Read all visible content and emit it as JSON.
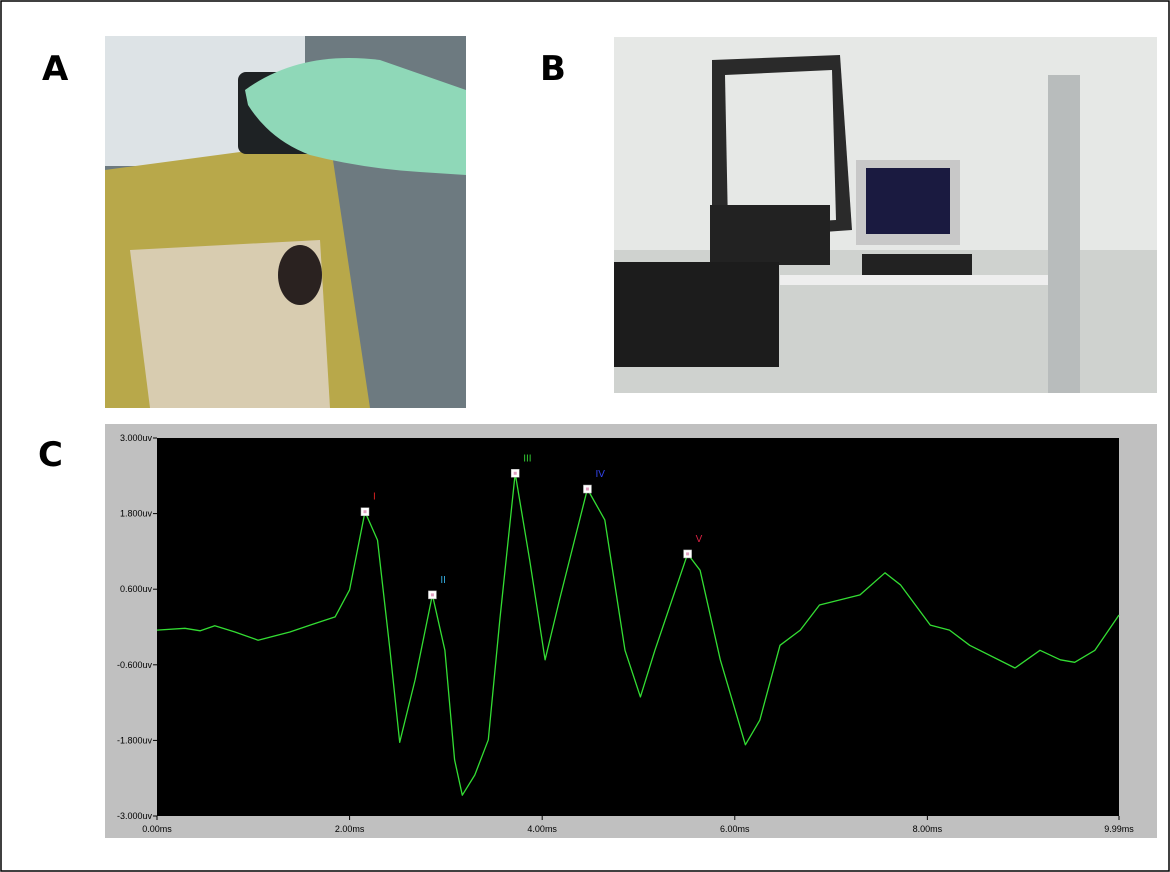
{
  "panel_labels": [
    "A",
    "B",
    "C"
  ],
  "chart_data": {
    "type": "line",
    "x": [
      0,
      0.29,
      0.45,
      0.6,
      0.81,
      1.05,
      1.38,
      1.59,
      1.85,
      2.0,
      2.16,
      2.29,
      2.42,
      2.52,
      2.68,
      2.86,
      2.99,
      3.09,
      3.17,
      3.3,
      3.44,
      3.56,
      3.72,
      3.87,
      4.03,
      4.18,
      4.47,
      4.65,
      4.86,
      5.02,
      5.17,
      5.51,
      5.64,
      5.85,
      6.11,
      6.26,
      6.47,
      6.68,
      6.88,
      7.3,
      7.56,
      7.72,
      8.03,
      8.23,
      8.44,
      8.91,
      9.17,
      9.38,
      9.53,
      9.74,
      9.99
    ],
    "values": [
      -0.05,
      -0.02,
      -0.06,
      0.02,
      -0.08,
      -0.21,
      -0.08,
      0.03,
      0.16,
      0.59,
      1.83,
      1.38,
      -0.37,
      -1.83,
      -0.84,
      0.51,
      -0.37,
      -2.11,
      -2.67,
      -2.35,
      -1.79,
      0.11,
      2.44,
      1.06,
      -0.52,
      0.43,
      2.19,
      1.7,
      -0.37,
      -1.11,
      -0.37,
      1.16,
      0.9,
      -0.52,
      -1.87,
      -1.48,
      -0.29,
      -0.05,
      0.35,
      0.51,
      0.86,
      0.67,
      0.03,
      -0.05,
      -0.29,
      -0.65,
      -0.37,
      -0.52,
      -0.56,
      -0.37,
      0.19
    ],
    "color": "#33dd33",
    "xlim": [
      0,
      9.99
    ],
    "ylim": [
      -3,
      3
    ],
    "xticks": [
      {
        "value": 0,
        "label": "0.00ms"
      },
      {
        "value": 2,
        "label": "2.00ms"
      },
      {
        "value": 4,
        "label": "4.00ms"
      },
      {
        "value": 6,
        "label": "6.00ms"
      },
      {
        "value": 8,
        "label": "8.00ms"
      },
      {
        "value": 9.99,
        "label": "9.99ms"
      }
    ],
    "yticks": [
      {
        "value": 3,
        "label": "3.000uv"
      },
      {
        "value": 1.8,
        "label": "1.800uv"
      },
      {
        "value": 0.6,
        "label": "0.600uv"
      },
      {
        "value": -0.6,
        "label": "-0.600uv"
      },
      {
        "value": -1.8,
        "label": "-1.800uv"
      },
      {
        "value": -3,
        "label": "-3.000uv"
      }
    ],
    "peaks": [
      {
        "label": "I",
        "x": 2.16,
        "y": 1.83,
        "color": "#dd2222"
      },
      {
        "label": "II",
        "x": 2.86,
        "y": 0.51,
        "color": "#33aadd"
      },
      {
        "label": "III",
        "x": 3.72,
        "y": 2.44,
        "color": "#33cc33"
      },
      {
        "label": "IV",
        "x": 4.47,
        "y": 2.19,
        "color": "#3344ee"
      },
      {
        "label": "V",
        "x": 5.51,
        "y": 1.16,
        "color": "#dd2244"
      }
    ]
  }
}
